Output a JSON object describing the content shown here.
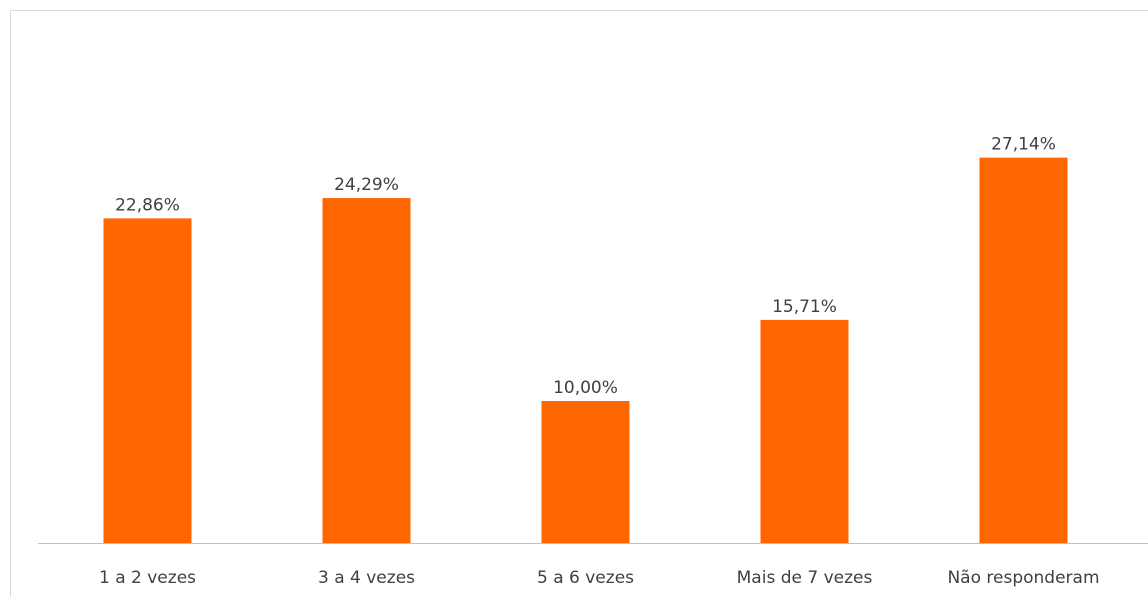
{
  "chart_data": {
    "type": "bar",
    "categories": [
      "1 a 2 vezes",
      "3 a 4 vezes",
      "5 a 6 vezes",
      "Mais de 7 vezes",
      "Não responderam"
    ],
    "values": [
      22.86,
      24.29,
      10,
      15.71,
      27.14
    ],
    "value_labels": [
      "22,86%",
      "24,29%",
      "10,00%",
      "15,71%",
      "27,14%"
    ],
    "color": "#ff6600",
    "ylim": [
      0,
      35
    ]
  }
}
